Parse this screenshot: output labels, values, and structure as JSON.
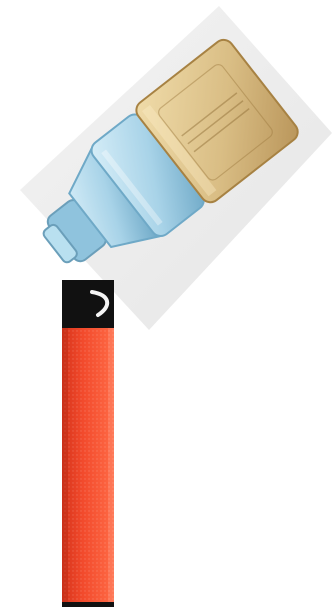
{
  "scene": {
    "description_free": true,
    "colors": {
      "page_background": "#ffffff",
      "card_background": "#ededed",
      "pod_cap_gold": "#d9bd84",
      "pod_cap_shadow": "#b9955a",
      "pod_body_blue": "#a8d3e8",
      "pod_body_shadow": "#6fa9c7",
      "device_red": "#f24a2c",
      "device_red_dark": "#d7341b",
      "device_top_black": "#111111"
    },
    "icons": {
      "pod": "vape-pod-icon",
      "device": "vape-device-icon"
    }
  }
}
